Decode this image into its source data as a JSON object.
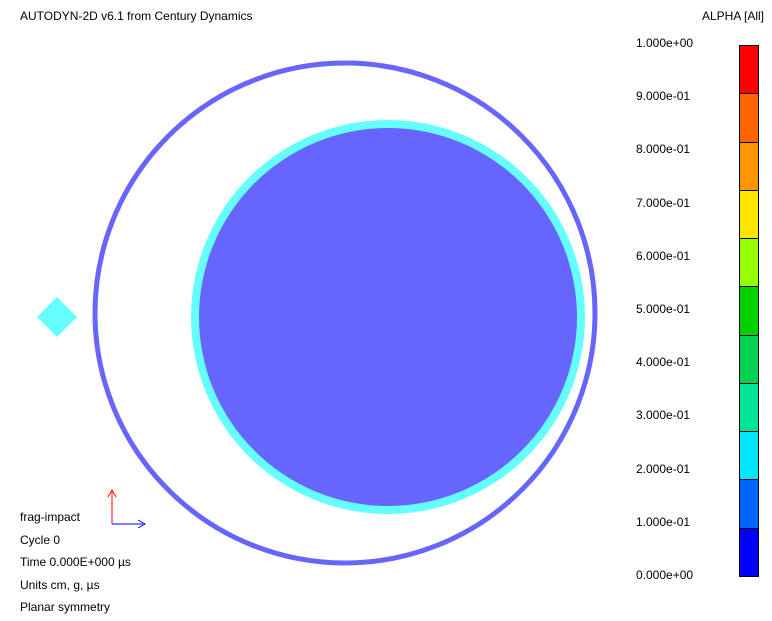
{
  "header": {
    "title": "AUTODYN-2D v6.1 from Century Dynamics",
    "variable_label": "ALPHA [All]"
  },
  "legend": {
    "tick_labels": [
      "1.000e+00",
      "9.000e-01",
      "8.000e-01",
      "7.000e-01",
      "6.000e-01",
      "5.000e-01",
      "4.000e-01",
      "3.000e-01",
      "2.000e-01",
      "1.000e-01",
      "0.000e+00"
    ],
    "colors_bottom_to_top": [
      "#0000ff",
      "#0064ff",
      "#00e6ff",
      "#00e696",
      "#00d250",
      "#00d200",
      "#96ff00",
      "#ffe600",
      "#ff9600",
      "#ff6400",
      "#ff0000"
    ]
  },
  "scene": {
    "outer_ring_color": "#6666ff",
    "liner_ring_color": "#66ffff",
    "core_color": "#6666ff",
    "fragment_color": "#66ffff"
  },
  "info": {
    "name": "frag-impact",
    "cycle": "Cycle 0",
    "time": "Time 0.000E+000 µs",
    "units": "Units cm, g, µs",
    "symmetry": "Planar symmetry"
  },
  "axes_indicator": {
    "y_color": "#ff0000",
    "x_color": "#0000ff"
  }
}
